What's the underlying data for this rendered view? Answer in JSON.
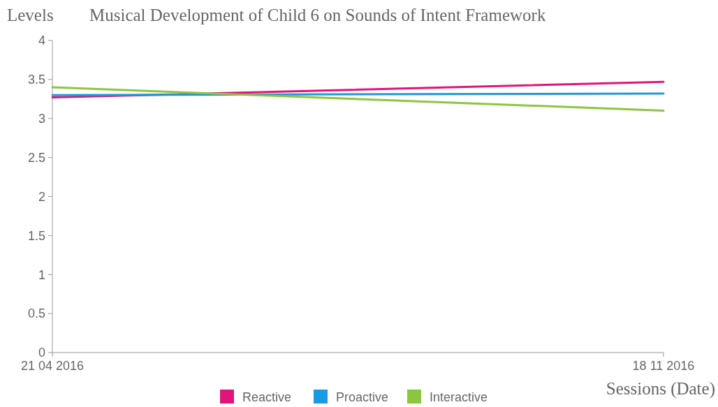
{
  "chart_data": {
    "type": "line",
    "title": "Musical Development of Child 6 on Sounds of Intent Framework",
    "ylabel": "Levels",
    "xlabel": "Sessions (Date)",
    "categories": [
      "21 04 2016",
      "18 11 2016"
    ],
    "series": [
      {
        "name": "Reactive",
        "color": "#e0157a",
        "values": [
          3.27,
          3.47
        ]
      },
      {
        "name": "Proactive",
        "color": "#1a9ae0",
        "values": [
          3.3,
          3.32
        ]
      },
      {
        "name": "Interactive",
        "color": "#8cc63f",
        "values": [
          3.4,
          3.1
        ]
      }
    ],
    "ylim": [
      0,
      4
    ],
    "yticks": [
      0,
      0.5,
      1,
      1.5,
      2,
      2.5,
      3,
      3.5,
      4
    ],
    "grid": false,
    "legend": "bottom",
    "marker": "none",
    "line_style": "solid"
  }
}
